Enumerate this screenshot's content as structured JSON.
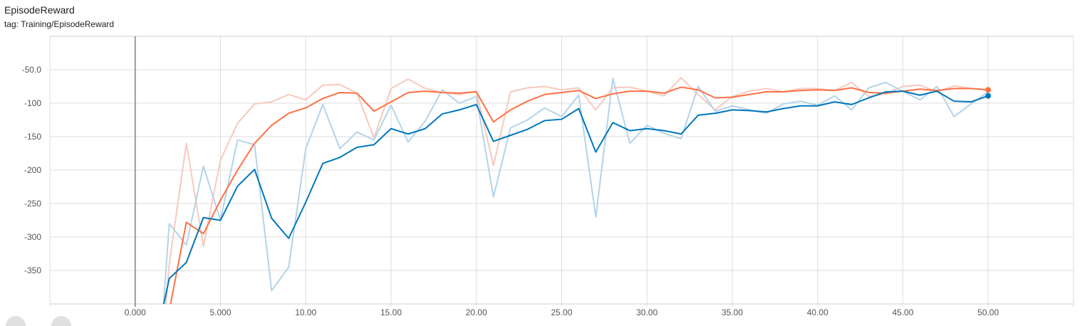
{
  "header": {
    "title": "EpisodeReward",
    "tag": "tag: Training/EpisodeReward"
  },
  "chart_data": {
    "type": "line",
    "title": "EpisodeReward",
    "xlim": [
      -5,
      55
    ],
    "ylim": [
      -400,
      0
    ],
    "grid": true,
    "xticks": [
      0,
      5,
      10,
      15,
      20,
      25,
      30,
      35,
      40,
      45,
      50
    ],
    "xtick_labels": [
      "0.000",
      "5.000",
      "10.00",
      "15.00",
      "20.00",
      "25.00",
      "30.00",
      "35.00",
      "40.00",
      "45.00",
      "50.00"
    ],
    "yticks": [
      -50,
      -100,
      -150,
      -200,
      -250,
      -300,
      -350
    ],
    "ytick_labels": [
      "-50.0",
      "-100",
      "-150",
      "-200",
      "-250",
      "-300",
      "-350"
    ],
    "x": [
      1,
      2,
      3,
      4,
      5,
      6,
      7,
      8,
      9,
      10,
      11,
      12,
      13,
      14,
      15,
      16,
      17,
      18,
      19,
      20,
      21,
      22,
      23,
      24,
      25,
      26,
      27,
      28,
      29,
      30,
      31,
      32,
      33,
      34,
      35,
      36,
      37,
      38,
      39,
      40,
      41,
      42,
      43,
      44,
      45,
      46,
      47,
      48,
      49,
      50
    ],
    "series": [
      {
        "color": "#f7c9bd",
        "role": "raw",
        "values": [
          -650,
          -340,
          -160,
          -314,
          -185,
          -130,
          -101,
          -98,
          -87,
          -95,
          -73,
          -72,
          -85,
          -152,
          -78,
          -64,
          -78,
          -84,
          -87,
          -82,
          -193,
          -83,
          -77,
          -75,
          -80,
          -77,
          -110,
          -77,
          -76,
          -82,
          -89,
          -62,
          -87,
          -110,
          -90,
          -82,
          -78,
          -83,
          -78,
          -78,
          -81,
          -69,
          -90,
          -86,
          -75,
          -73,
          -83,
          -74,
          -78,
          -80
        ]
      },
      {
        "color": "#b3d4ea",
        "role": "raw",
        "values": [
          -640,
          -280,
          -312,
          -194,
          -275,
          -155,
          -162,
          -380,
          -345,
          -168,
          -102,
          -168,
          -143,
          -155,
          -103,
          -158,
          -127,
          -80,
          -100,
          -90,
          -240,
          -137,
          -125,
          -107,
          -120,
          -88,
          -270,
          -63,
          -160,
          -133,
          -145,
          -153,
          -75,
          -112,
          -104,
          -110,
          -115,
          -101,
          -97,
          -103,
          -89,
          -110,
          -77,
          -69,
          -82,
          -95,
          -75,
          -120,
          -101,
          -83
        ]
      },
      {
        "color": "#ff7043",
        "role": "smoothed",
        "values": [
          -650,
          -410,
          -278,
          -295,
          -245,
          -200,
          -160,
          -133,
          -115,
          -107,
          -93,
          -84,
          -85,
          -112,
          -98,
          -84,
          -82,
          -84,
          -85,
          -83,
          -128,
          -110,
          -97,
          -87,
          -84,
          -81,
          -93,
          -86,
          -82,
          -82,
          -85,
          -76,
          -80,
          -92,
          -91,
          -87,
          -83,
          -83,
          -81,
          -80,
          -81,
          -77,
          -84,
          -85,
          -82,
          -79,
          -81,
          -78,
          -78,
          -80
        ]
      },
      {
        "color": "#0077bb",
        "role": "smoothed",
        "values": [
          -480,
          -362,
          -338,
          -271,
          -275,
          -224,
          -199,
          -272,
          -302,
          -248,
          -190,
          -181,
          -166,
          -162,
          -138,
          -146,
          -138,
          -116,
          -110,
          -102,
          -157,
          -148,
          -139,
          -126,
          -124,
          -108,
          -173,
          -129,
          -141,
          -138,
          -141,
          -146,
          -118,
          -115,
          -110,
          -111,
          -113,
          -108,
          -104,
          -104,
          -98,
          -102,
          -92,
          -83,
          -82,
          -88,
          -82,
          -97,
          -98,
          -89
        ]
      }
    ]
  }
}
